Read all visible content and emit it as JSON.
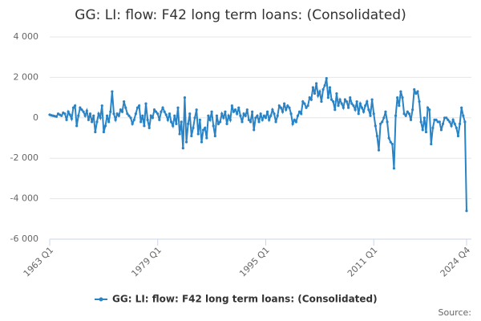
{
  "chart_data": {
    "type": "line",
    "title": "GG: LI: flow: F42 long term loans: (Consolidated)",
    "source": "Source:",
    "categories": [
      "1963 Q1",
      null,
      null,
      null,
      null,
      null,
      null,
      null,
      null,
      null,
      null,
      null,
      null,
      null,
      null,
      null,
      null,
      null,
      null,
      null,
      null,
      null,
      null,
      null,
      null,
      null,
      null,
      null,
      null,
      null,
      null,
      null,
      null,
      null,
      null,
      null,
      null,
      null,
      null,
      null,
      null,
      null,
      null,
      null,
      null,
      null,
      null,
      null,
      null,
      null,
      null,
      null,
      null,
      null,
      null,
      null,
      null,
      null,
      null,
      null,
      null,
      null,
      null,
      null,
      "1979 Q1",
      null,
      null,
      null,
      null,
      null,
      null,
      null,
      null,
      null,
      null,
      null,
      null,
      null,
      null,
      null,
      null,
      null,
      null,
      null,
      null,
      null,
      null,
      null,
      null,
      null,
      null,
      null,
      null,
      null,
      null,
      null,
      null,
      null,
      null,
      null,
      null,
      null,
      null,
      null,
      null,
      null,
      null,
      null,
      null,
      null,
      null,
      null,
      null,
      null,
      null,
      null,
      null,
      null,
      null,
      null,
      null,
      null,
      null,
      null,
      null,
      null,
      null,
      null,
      "1995 Q1",
      null,
      null,
      null,
      null,
      null,
      null,
      null,
      null,
      null,
      null,
      null,
      null,
      null,
      null,
      null,
      null,
      null,
      null,
      null,
      null,
      null,
      null,
      null,
      null,
      null,
      null,
      null,
      null,
      null,
      null,
      null,
      null,
      null,
      null,
      null,
      null,
      null,
      null,
      null,
      null,
      null,
      null,
      null,
      null,
      null,
      null,
      null,
      null,
      null,
      null,
      null,
      null,
      null,
      null,
      null,
      null,
      null,
      null,
      null,
      null,
      null,
      null,
      null,
      "2011 Q1",
      null,
      null,
      null,
      null,
      null,
      null,
      null,
      null,
      null,
      null,
      null,
      null,
      null,
      null,
      null,
      null,
      null,
      null,
      null,
      null,
      null,
      null,
      null,
      null,
      null,
      null,
      null,
      null,
      null,
      null,
      null,
      null,
      null,
      null,
      null,
      null,
      null,
      null,
      null,
      null,
      null,
      null,
      null,
      null,
      null,
      null,
      null,
      null,
      null,
      null,
      null,
      null,
      null,
      null,
      "2024 Q4"
    ],
    "series": [
      {
        "name": "GG: LI: flow: F42 long term loans: (Consolidated)",
        "color": "#2a83c4",
        "values": [
          150,
          120,
          100,
          80,
          60,
          200,
          150,
          100,
          250,
          200,
          -100,
          300,
          150,
          -50,
          500,
          600,
          -400,
          100,
          500,
          400,
          300,
          100,
          350,
          -100,
          200,
          -200,
          100,
          -700,
          -200,
          200,
          0,
          600,
          -700,
          -400,
          100,
          -200,
          300,
          1300,
          200,
          -100,
          200,
          100,
          400,
          300,
          800,
          500,
          200,
          100,
          0,
          -300,
          -100,
          200,
          500,
          600,
          -200,
          100,
          -400,
          700,
          -100,
          -500,
          100,
          0,
          400,
          300,
          200,
          -100,
          300,
          500,
          300,
          150,
          -100,
          200,
          -200,
          -400,
          100,
          -300,
          500,
          -800,
          -200,
          -1500,
          1000,
          -1200,
          -300,
          200,
          -900,
          -500,
          0,
          400,
          -800,
          -100,
          -1200,
          -600,
          -500,
          -1000,
          100,
          -100,
          300,
          -400,
          -900,
          100,
          -300,
          -200,
          200,
          0,
          300,
          -300,
          100,
          -100,
          600,
          300,
          400,
          200,
          500,
          100,
          -200,
          200,
          100,
          400,
          -100,
          -200,
          300,
          -600,
          0,
          100,
          -200,
          200,
          -100,
          100,
          0,
          300,
          -100,
          100,
          400,
          200,
          -200,
          100,
          600,
          500,
          300,
          700,
          400,
          600,
          500,
          200,
          -300,
          -100,
          -200,
          100,
          300,
          200,
          800,
          700,
          500,
          600,
          1000,
          900,
          1500,
          1200,
          1700,
          1100,
          1300,
          800,
          1400,
          1600,
          1950,
          1000,
          1500,
          900,
          800,
          400,
          1200,
          600,
          900,
          700,
          500,
          900,
          800,
          500,
          1000,
          700,
          600,
          400,
          800,
          200,
          700,
          500,
          300,
          600,
          800,
          400,
          100,
          900,
          200,
          -400,
          -900,
          -1600,
          -300,
          -200,
          0,
          300,
          -200,
          -1000,
          -1200,
          -1300,
          -2500,
          100,
          1000,
          600,
          1300,
          1000,
          200,
          100,
          300,
          200,
          -100,
          400,
          1400,
          1200,
          1300,
          800,
          -200,
          -600,
          0,
          -700,
          500,
          400,
          -1300,
          -500,
          -100,
          -100,
          -200,
          -200,
          -600,
          -300,
          0,
          0,
          -100,
          -200,
          -400,
          -100,
          -300,
          -500,
          -900,
          -300,
          500,
          100,
          -200,
          -4600
        ]
      }
    ],
    "ylim": [
      -6000,
      4000
    ],
    "yticks": [
      {
        "value": -6000,
        "label": "-6 000"
      },
      {
        "value": -4000,
        "label": "-4 000"
      },
      {
        "value": -2000,
        "label": "-2 000"
      },
      0,
      {
        "value": 2000,
        "label": "2 000"
      },
      {
        "value": 4000,
        "label": "4 000"
      }
    ],
    "grid": true
  }
}
